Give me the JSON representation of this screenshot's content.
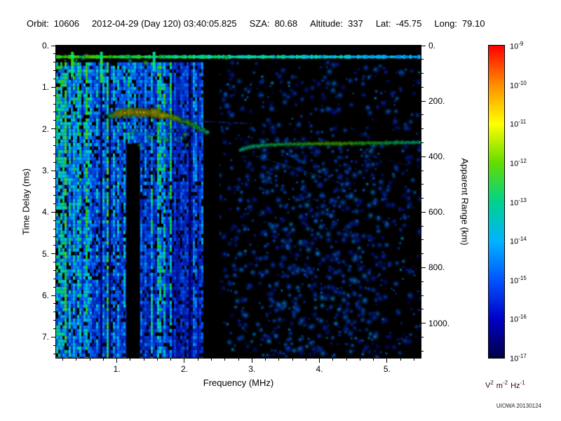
{
  "header": {
    "items": [
      {
        "label": "Orbit:",
        "value": "10606"
      },
      {
        "label": "",
        "value": "2012-04-29 (Day 120) 03:40:05.825"
      },
      {
        "label": "SZA:",
        "value": "80.68"
      },
      {
        "label": "Altitude:",
        "value": "337"
      },
      {
        "label": "Lat:",
        "value": "-45.75"
      },
      {
        "label": "Long:",
        "value": "79.10"
      }
    ]
  },
  "footer": {
    "credit": "UIOWA 20130124"
  },
  "chart_data": {
    "type": "heatmap",
    "title": "",
    "xlabel": "Frequency (MHz)",
    "ylabel": "Time Delay (ms)",
    "y2label": "Apparent Range (km)",
    "x_range": [
      0.1,
      5.5
    ],
    "y_range": [
      0,
      7.5
    ],
    "km_per_ms": 150,
    "background": "#000000",
    "x_ticks": [
      {
        "value": 1,
        "label": "1."
      },
      {
        "value": 2,
        "label": "2."
      },
      {
        "value": 3,
        "label": "3."
      },
      {
        "value": 4,
        "label": "4."
      },
      {
        "value": 5,
        "label": "5."
      }
    ],
    "y_ticks": [
      {
        "value": 0,
        "label": "0."
      },
      {
        "value": 1,
        "label": "1."
      },
      {
        "value": 2,
        "label": "2."
      },
      {
        "value": 3,
        "label": "3."
      },
      {
        "value": 4,
        "label": "4."
      },
      {
        "value": 5,
        "label": "5."
      },
      {
        "value": 6,
        "label": "6."
      },
      {
        "value": 7,
        "label": "7."
      }
    ],
    "y2_ticks": [
      {
        "value": 0,
        "label": "0."
      },
      {
        "value": 200,
        "label": "200."
      },
      {
        "value": 400,
        "label": "400."
      },
      {
        "value": 600,
        "label": "600."
      },
      {
        "value": 800,
        "label": "800."
      },
      {
        "value": 1000,
        "label": "1000."
      }
    ],
    "colorbar": {
      "base": "10",
      "exponents": [
        "-9",
        "-10",
        "-11",
        "-12",
        "-13",
        "-14",
        "-15",
        "-16",
        "-17"
      ],
      "stops": [
        "#ff0000",
        "#ff8c00",
        "#ffff00",
        "#64dc00",
        "#00d28c",
        "#00b4ff",
        "#0055ff",
        "#0000c8",
        "#000046"
      ],
      "unit_parts": [
        [
          "V",
          "2"
        ],
        [
          "m",
          "-2"
        ],
        [
          "Hz",
          "-1"
        ]
      ],
      "unit_color": "#3a0a0a"
    },
    "features": {
      "seed": 20130124,
      "noise_stripes": {
        "f_min": 0.1,
        "f_max": 2.27,
        "t_min": 0.4,
        "description": "dense vertical cyan/green interference stripes at low frequency"
      },
      "dark_bands": [
        {
          "f": [
            1.14,
            1.34
          ],
          "t": [
            2.35,
            7.5
          ]
        },
        {
          "f": [
            2.28,
            2.52
          ],
          "t": [
            0.42,
            7.5
          ]
        }
      ],
      "surface_echo": {
        "t": 0.27,
        "f": [
          0.1,
          5.5
        ],
        "description": "bright horizontal line near zero delay, brighter at low frequency"
      },
      "cusp_echo": {
        "f": [
          0.88,
          2.36
        ],
        "f_apex": 1.3,
        "t_apex": 1.6,
        "description": "bright yellow-green oblique echo arc near 1-2 MHz, 1.6-2.1 ms"
      },
      "ionosphere_echo": {
        "f": [
          2.82,
          5.5
        ],
        "t": 2.38,
        "description": "green-cyan horizontal echo trace near 2.4 ms above 2.8 MHz"
      },
      "sparse_noise": {
        "f_min": 2.5,
        "description": "sparse dark-blue speckle blobs on black"
      }
    }
  }
}
